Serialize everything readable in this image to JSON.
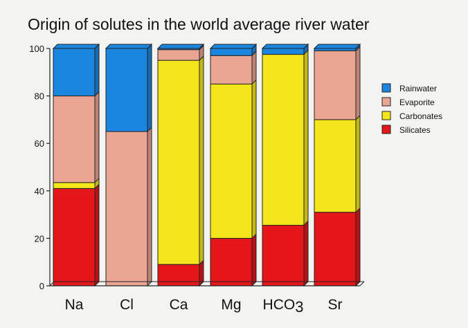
{
  "title": "Origin of solutes in the world average river water",
  "colors": {
    "Rainwater": "#1b86e0",
    "Evaporite": "#eba593",
    "Carbonates": "#f5e61c",
    "Silicates": "#e5161a"
  },
  "chart_data": {
    "type": "bar",
    "stacked": true,
    "title": "Origin of solutes in the world average river water",
    "xlabel": "",
    "ylabel": "",
    "ylim": [
      0,
      100
    ],
    "yticks": [
      "0",
      "20",
      "40",
      "60",
      "80",
      "100"
    ],
    "categories": [
      "Na",
      "Cl",
      "Ca",
      "Mg",
      "HCO3",
      "Sr"
    ],
    "series": [
      {
        "name": "Silicates",
        "values": [
          41,
          0,
          9,
          20,
          25.5,
          31
        ]
      },
      {
        "name": "Carbonates",
        "values": [
          2.5,
          0,
          86,
          65,
          72,
          39
        ]
      },
      {
        "name": "Evaporite",
        "values": [
          36.5,
          65,
          4.5,
          12,
          0,
          29
        ]
      },
      {
        "name": "Rainwater",
        "values": [
          20,
          35,
          0.5,
          3,
          2.5,
          1
        ]
      }
    ],
    "legend": {
      "placement": "right",
      "entries": [
        "Rainwater",
        "Evaporite",
        "Carbonates",
        "Silicates"
      ]
    },
    "grid": false
  }
}
